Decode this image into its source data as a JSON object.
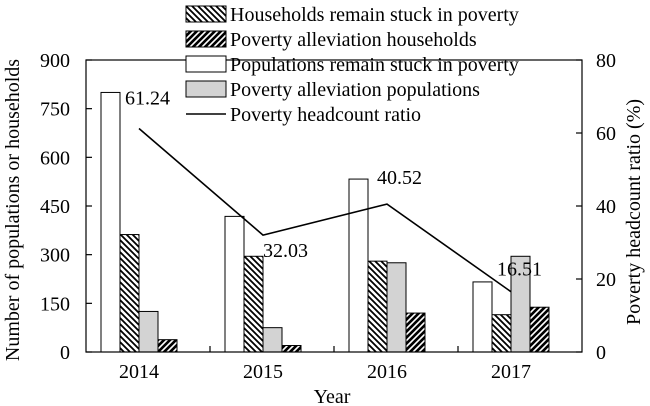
{
  "chart_data": {
    "type": "bar",
    "categories": [
      "2014",
      "2015",
      "2016",
      "2017"
    ],
    "xlabel": "Year",
    "ylabel": "Number of populations or households",
    "y2label": "Poverty headcount ratio (%)",
    "ylim": [
      0,
      900
    ],
    "yticks": [
      0,
      150,
      300,
      450,
      600,
      750,
      900
    ],
    "y2lim": [
      0,
      80
    ],
    "y2ticks": [
      0,
      20,
      40,
      60,
      80
    ],
    "series": [
      {
        "name": "Populations remain stuck in poverty",
        "values": [
          800,
          418,
          533,
          216
        ],
        "style": "white"
      },
      {
        "name": "Households remain stuck in poverty",
        "values": [
          362,
          295,
          280,
          115
        ],
        "style": "hatch-back"
      },
      {
        "name": "Poverty alleviation populations",
        "values": [
          125,
          75,
          275,
          295
        ],
        "style": "gray"
      },
      {
        "name": "Poverty alleviation households",
        "values": [
          38,
          20,
          120,
          138
        ],
        "style": "hatch-fwd"
      }
    ],
    "line": {
      "name": "Poverty headcount ratio",
      "values": [
        61.24,
        32.03,
        40.52,
        16.51
      ],
      "labels": [
        "61.24",
        "32.03",
        "40.52",
        "16.51"
      ]
    },
    "legend": {
      "placement": "top-right",
      "order": [
        "Households remain stuck in poverty",
        "Poverty alleviation households",
        "Populations remain stuck in poverty",
        "Poverty alleviation populations",
        "Poverty headcount ratio"
      ]
    },
    "grid": false
  }
}
